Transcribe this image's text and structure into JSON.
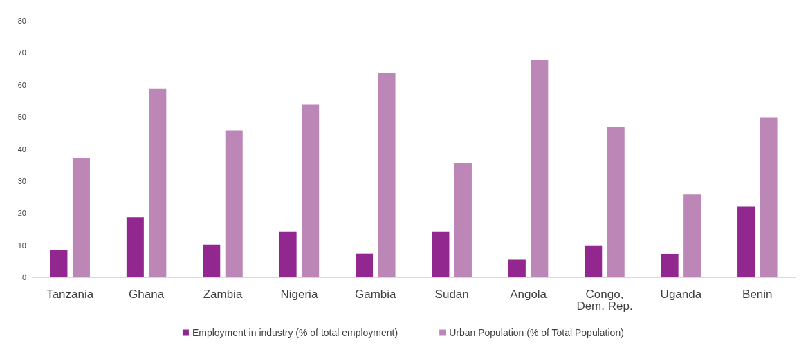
{
  "chart_data": {
    "type": "bar",
    "categories": [
      "Tanzania",
      "Ghana",
      "Zambia",
      "Nigeria",
      "Gambia",
      "Sudan",
      "Angola",
      "Congo, Dem. Rep.",
      "Uganda",
      "Benin"
    ],
    "series": [
      {
        "name": "Employment in industry (% of total employment)",
        "color": "#92278f",
        "values": [
          8.4,
          18.7,
          10.2,
          14.3,
          7.4,
          14.3,
          5.5,
          10.0,
          7.2,
          22.1
        ]
      },
      {
        "name": "Urban Population (% of Total Population)",
        "color": "#bc87b6",
        "values": [
          37.2,
          58.9,
          45.8,
          53.8,
          63.8,
          35.8,
          67.7,
          46.8,
          25.8,
          49.9
        ]
      }
    ],
    "ylim": [
      0,
      80
    ],
    "yticks": [
      0,
      10,
      20,
      30,
      40,
      50,
      60,
      70,
      80
    ],
    "grid": false,
    "legend": "bottom"
  }
}
